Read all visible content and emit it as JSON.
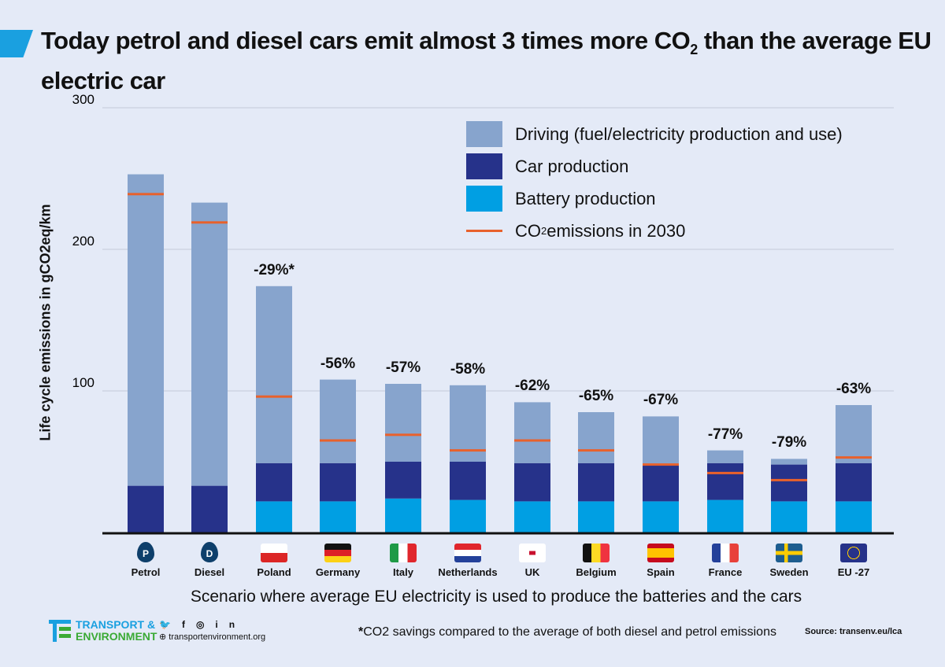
{
  "title": "Today petrol and diesel cars emit almost 3 times more CO",
  "title_sub": "2",
  "title_end": " than the average EU electric car",
  "chart_data": {
    "type": "bar",
    "stacked": true,
    "ylabel": "Life cycle emissions in gCO2eq/km",
    "ylim": [
      0,
      300
    ],
    "yticks": [
      "100",
      "200",
      "300"
    ],
    "grid": true,
    "legend_position": "top-right",
    "categories": [
      "Petrol",
      "Diesel",
      "Poland",
      "Germany",
      "Italy",
      "Netherlands",
      "UK",
      "Belgium",
      "Spain",
      "France",
      "Sweden",
      "EU -27"
    ],
    "series": [
      {
        "name": "Battery production",
        "color": "#009fe3",
        "values": [
          0,
          0,
          22,
          22,
          24,
          23,
          22,
          22,
          22,
          23,
          22,
          22
        ]
      },
      {
        "name": "Car production",
        "color": "#26328a",
        "values": [
          33,
          33,
          27,
          27,
          26,
          27,
          27,
          27,
          26,
          26,
          26,
          27
        ]
      },
      {
        "name": "Driving (fuel/electricity production and use)",
        "color": "#87a4cd",
        "values": [
          220,
          200,
          125,
          59,
          55,
          54,
          43,
          36,
          34,
          9,
          4,
          41
        ]
      }
    ],
    "markers": {
      "name": "CO2 emissions in 2030",
      "color": "#e8612c",
      "values": [
        239,
        219,
        96,
        65,
        69,
        58,
        65,
        58,
        48,
        42,
        37,
        53
      ]
    },
    "annotations": [
      "",
      "",
      "-29%*",
      "-56%",
      "-57%",
      "-58%",
      "-62%",
      "-65%",
      "-67%",
      "-77%",
      "-79%",
      "-63%"
    ],
    "icons": [
      "petrol-drop-icon",
      "diesel-drop-icon",
      "poland-flag-icon",
      "germany-flag-icon",
      "italy-flag-icon",
      "netherlands-flag-icon",
      "uk-flag-icon",
      "belgium-flag-icon",
      "spain-flag-icon",
      "france-flag-icon",
      "sweden-flag-icon",
      "eu-flag-icon"
    ]
  },
  "legend": {
    "driving": "Driving (fuel/electricity production and use)",
    "car": "Car production",
    "battery": "Battery production",
    "co2_pre": "CO",
    "co2_sub": "2",
    "co2_post": " emissions in 2030"
  },
  "scenario": "Scenario where  average EU electricity is used to produce the batteries and the cars",
  "footnote_star": "*",
  "footnote": "CO2 savings compared to the average of both diesel and petrol emissions",
  "source": "Source: transenv.eu/lca",
  "logo": {
    "line1": "TRANSPORT &",
    "line2": "ENVIRONMENT",
    "website": "transportenvironment.org"
  }
}
